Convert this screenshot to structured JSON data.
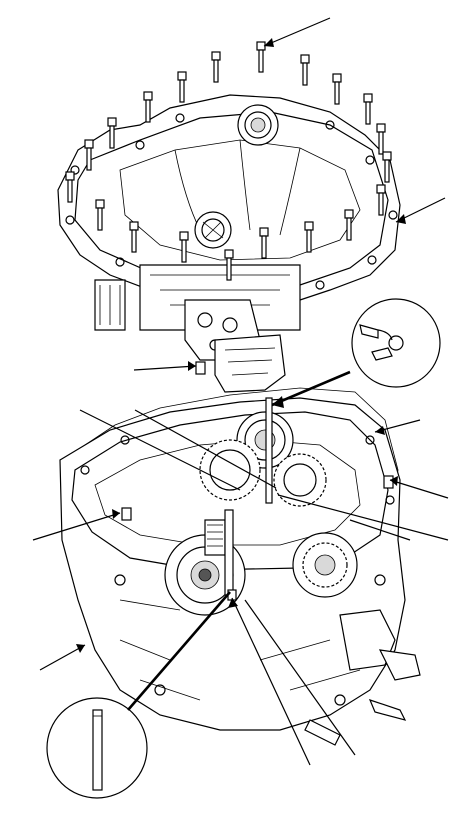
{
  "figure": {
    "domain": "exploded-assembly-illustration",
    "callout_count": 12,
    "detail_insets": 2,
    "colors": {
      "line": "#000000",
      "background": "#ffffff",
      "shade": "#d9d9d9"
    },
    "bolt_count_upper": 20
  }
}
